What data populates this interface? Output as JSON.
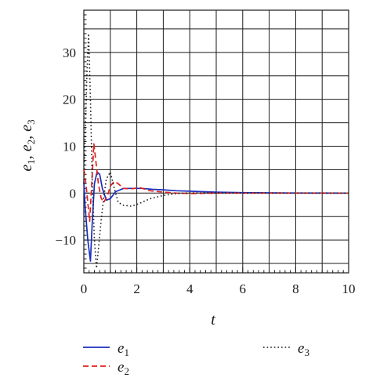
{
  "chart_data": {
    "type": "line",
    "title": "",
    "xlabel": "t",
    "ylabel": "e1, e2, e3",
    "xlim": [
      0,
      10
    ],
    "ylim": [
      -17,
      39
    ],
    "grid": true,
    "legend_placement": "bottom",
    "x_ticks": [
      "0",
      "2",
      "4",
      "6",
      "8",
      "10"
    ],
    "y_ticks": [
      "−10",
      "0",
      "10",
      "20",
      "30"
    ],
    "series": [
      {
        "name": "e1",
        "name_base": "e",
        "name_sub": "1",
        "color": "#1a2fbf",
        "style": "solid",
        "x": [
          0,
          0.05,
          0.15,
          0.25,
          0.32,
          0.4,
          0.5,
          0.6,
          0.7,
          0.85,
          1.0,
          1.2,
          1.5,
          1.8,
          2.2,
          2.6,
          3.0,
          3.5,
          4.0,
          4.5,
          5.0,
          6.0,
          7.0,
          8.0,
          9.0,
          10.0
        ],
        "y": [
          2.5,
          -3,
          -10,
          -14.5,
          -6,
          2,
          4.5,
          4,
          1,
          -1.5,
          -1.2,
          0.3,
          1.0,
          1.0,
          1.0,
          0.8,
          0.7,
          0.5,
          0.4,
          0.3,
          0.2,
          0.1,
          0.05,
          0.02,
          0.01,
          0
        ]
      },
      {
        "name": "e2",
        "name_base": "e",
        "name_sub": "2",
        "color": "#e0201c",
        "style": "dashed",
        "x": [
          0,
          0.08,
          0.15,
          0.22,
          0.3,
          0.38,
          0.45,
          0.55,
          0.65,
          0.75,
          0.9,
          1.0,
          1.15,
          1.3,
          1.5,
          1.8,
          2.1,
          2.5,
          3.0,
          3.5,
          4.0,
          5.0,
          6.0,
          8.0,
          10.0
        ],
        "y": [
          5,
          2,
          -2,
          -6,
          2,
          10.5,
          7,
          2,
          -1,
          -2,
          -0.5,
          1.5,
          2.5,
          2.0,
          1.0,
          0.9,
          1.2,
          0.5,
          0.2,
          0.0,
          -0.1,
          0,
          0,
          0,
          0
        ]
      },
      {
        "name": "e3",
        "name_base": "e",
        "name_sub": "3",
        "color": "#1a1a1a",
        "style": "dotted",
        "x": [
          0,
          0.05,
          0.12,
          0.18,
          0.25,
          0.32,
          0.4,
          0.48,
          0.55,
          0.65,
          0.75,
          0.85,
          1.0,
          1.15,
          1.3,
          1.5,
          1.8,
          2.1,
          2.5,
          3.0,
          3.5,
          4.0,
          5.0,
          6.0,
          8.0,
          10.0
        ],
        "y": [
          2,
          12,
          26,
          34,
          20,
          2,
          -10,
          -16,
          -12,
          -6,
          -1,
          3,
          4.5,
          1,
          -2,
          -2.6,
          -2.8,
          -2.2,
          -1.2,
          -0.5,
          -0.1,
          0.05,
          0,
          0,
          0,
          0
        ]
      }
    ]
  }
}
